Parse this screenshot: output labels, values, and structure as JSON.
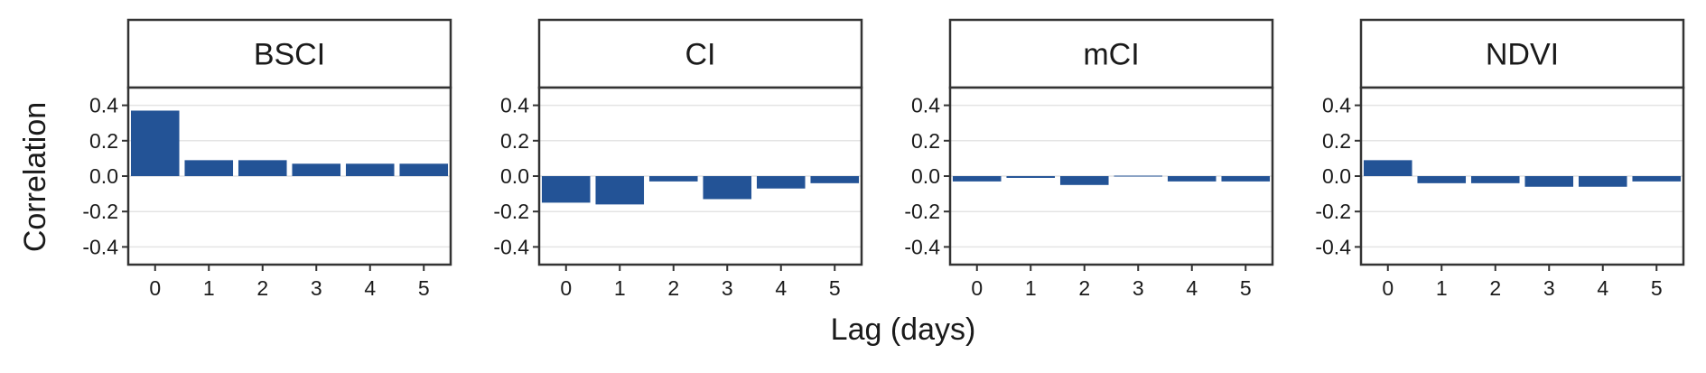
{
  "chart_data": {
    "type": "bar",
    "layout": "facet-row",
    "xlabel": "Lag (days)",
    "ylabel": "Correlation",
    "ylim": [
      -0.5,
      0.5
    ],
    "yticks": [
      0.4,
      0.2,
      0.0,
      -0.2,
      -0.4
    ],
    "ytick_labels": [
      "0.4",
      "0.2",
      "0.0",
      "-0.2",
      "-0.4"
    ],
    "categories": [
      "0",
      "1",
      "2",
      "3",
      "4",
      "5"
    ],
    "grid": true,
    "bar_color": "#235396",
    "panels": [
      {
        "name": "BSCI",
        "values": [
          0.37,
          0.09,
          0.09,
          0.07,
          0.07,
          0.07
        ]
      },
      {
        "name": "CI",
        "values": [
          -0.15,
          -0.16,
          -0.03,
          -0.13,
          -0.07,
          -0.04
        ]
      },
      {
        "name": "mCI",
        "values": [
          -0.03,
          -0.01,
          -0.05,
          0.0,
          -0.03,
          -0.03
        ]
      },
      {
        "name": "NDVI",
        "values": [
          0.09,
          -0.04,
          -0.04,
          -0.06,
          -0.06,
          -0.03
        ]
      }
    ]
  }
}
